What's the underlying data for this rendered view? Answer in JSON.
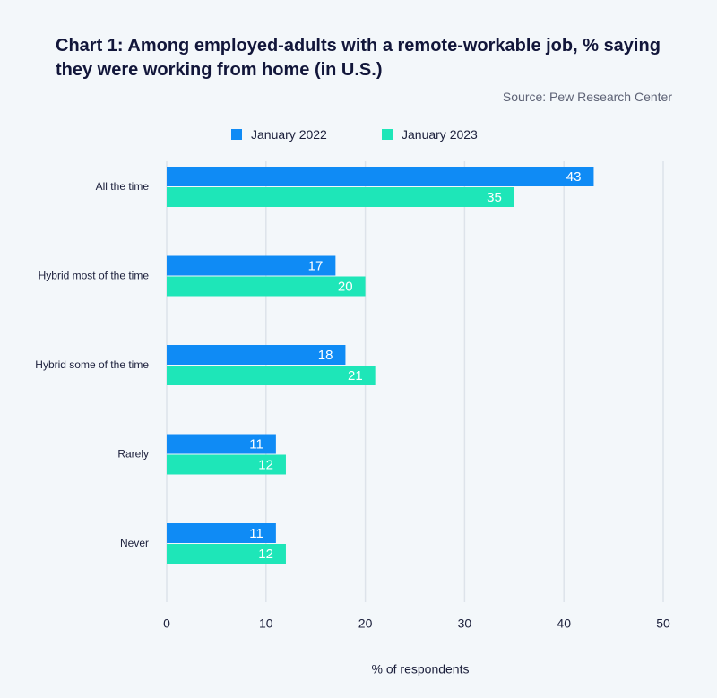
{
  "chart_data": {
    "type": "bar",
    "orientation": "horizontal",
    "title": "Chart 1: Among employed-adults with a remote-workable job, % saying they were working from home (in U.S.)",
    "source": "Source: Pew Research Center",
    "categories": [
      "All the time",
      "Hybrid most of the time",
      "Hybrid some of the time",
      "Rarely",
      "Never"
    ],
    "series": [
      {
        "name": "January 2022",
        "color": "#0f8bf5",
        "values": [
          43,
          17,
          18,
          11,
          11
        ]
      },
      {
        "name": "January 2023",
        "color": "#1ee6b8",
        "values": [
          35,
          20,
          21,
          12,
          12
        ]
      }
    ],
    "xlabel": "% of respondents",
    "ylabel": "",
    "xlim": [
      0,
      50
    ],
    "xticks": [
      0,
      10,
      20,
      30,
      40,
      50
    ],
    "grid": true,
    "legend": "top-center"
  }
}
